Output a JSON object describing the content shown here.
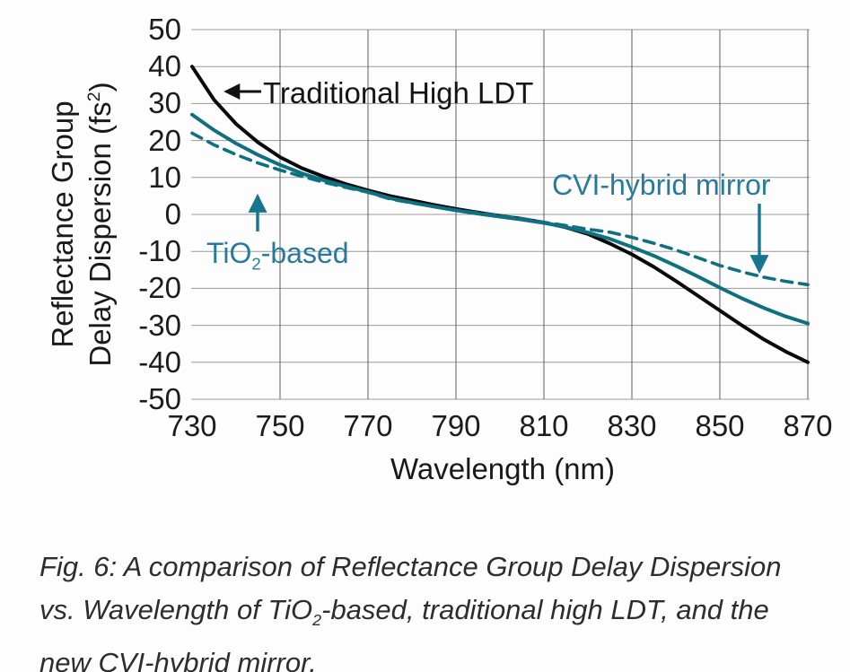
{
  "figure": {
    "y_axis": {
      "title_line1": "Reflectance Group",
      "title_line2": {
        "prefix": "Delay Dispersion (fs",
        "sup": "2",
        "suffix": ")"
      },
      "tick_labels": [
        "50",
        "40",
        "30",
        "20",
        "10",
        "0",
        "-10",
        "-20",
        "-30",
        "-40",
        "-50"
      ]
    },
    "x_axis": {
      "title": "Wavelength (nm)",
      "tick_labels": [
        "730",
        "750",
        "770",
        "790",
        "810",
        "830",
        "850",
        "870"
      ]
    },
    "annotations": {
      "traditional_label": "Traditional High LDT",
      "tio2_label": {
        "prefix": "TiO",
        "sub": "2",
        "suffix": "-based"
      },
      "cvi_label": "CVI-hybrid mirror"
    },
    "colors": {
      "curve_black": "#0a0a0a",
      "curve_teal": "#0e7080",
      "label_teal": "#267a9e",
      "arrow_teal": "#17768e",
      "grid_horizontal": "#9a9a9a",
      "grid_vertical": "#5f5f5f"
    }
  },
  "caption": {
    "line1": "Fig. 6: A comparison of Reflectance Group Delay Dispersion",
    "line2": {
      "prefix": "vs. Wavelength of TiO",
      "sub": "2",
      "suffix": "-based, traditional high LDT, and the"
    },
    "line3": "new CVI-hybrid mirror."
  },
  "chart_data": {
    "type": "line",
    "title": "",
    "xlabel": "Wavelength (nm)",
    "ylabel": "Reflectance Group Delay Dispersion (fs2)",
    "xlim": [
      730,
      870
    ],
    "ylim": [
      -50,
      50
    ],
    "x_tick_step": 20,
    "y_tick_step": 10,
    "grid": true,
    "legend_position": "none",
    "x": [
      730,
      735,
      740,
      745,
      750,
      755,
      760,
      765,
      770,
      775,
      780,
      785,
      790,
      795,
      800,
      805,
      810,
      815,
      820,
      825,
      830,
      835,
      840,
      845,
      850,
      855,
      860,
      865,
      870
    ],
    "series": [
      {
        "name": "Traditional High LDT",
        "style": "solid",
        "color": "#0a0a0a",
        "y": [
          40,
          31,
          24.5,
          19.5,
          15.5,
          12.5,
          10.2,
          8.2,
          6.5,
          5.0,
          3.8,
          2.6,
          1.5,
          0.5,
          -0.4,
          -1.2,
          -2.2,
          -3.5,
          -5.3,
          -7.9,
          -10.8,
          -14.2,
          -18.0,
          -22.0,
          -26.0,
          -30.0,
          -33.8,
          -37.1,
          -40.0
        ]
      },
      {
        "name": "TiO2-based",
        "style": "solid",
        "color": "#0e7080",
        "y": [
          27,
          22.8,
          19.2,
          16.1,
          13.4,
          11.1,
          9.2,
          7.6,
          6.1,
          4.4,
          3.2,
          2.1,
          1.1,
          0.2,
          -0.6,
          -1.4,
          -2.3,
          -3.4,
          -4.9,
          -6.6,
          -8.8,
          -11.2,
          -13.9,
          -16.8,
          -19.8,
          -22.7,
          -25.3,
          -27.6,
          -29.5
        ]
      },
      {
        "name": "CVI-hybrid mirror",
        "style": "dashed",
        "color": "#0e7080",
        "y": [
          22,
          18.8,
          16.2,
          13.9,
          12.0,
          10.3,
          8.7,
          7.3,
          6.0,
          4.2,
          3.1,
          2.1,
          1.2,
          0.4,
          -0.4,
          -1.2,
          -2.1,
          -3.0,
          -4.0,
          -4.8,
          -6.2,
          -7.8,
          -9.6,
          -11.7,
          -13.8,
          -15.5,
          -17.0,
          -18.1,
          -19.0
        ]
      }
    ]
  }
}
